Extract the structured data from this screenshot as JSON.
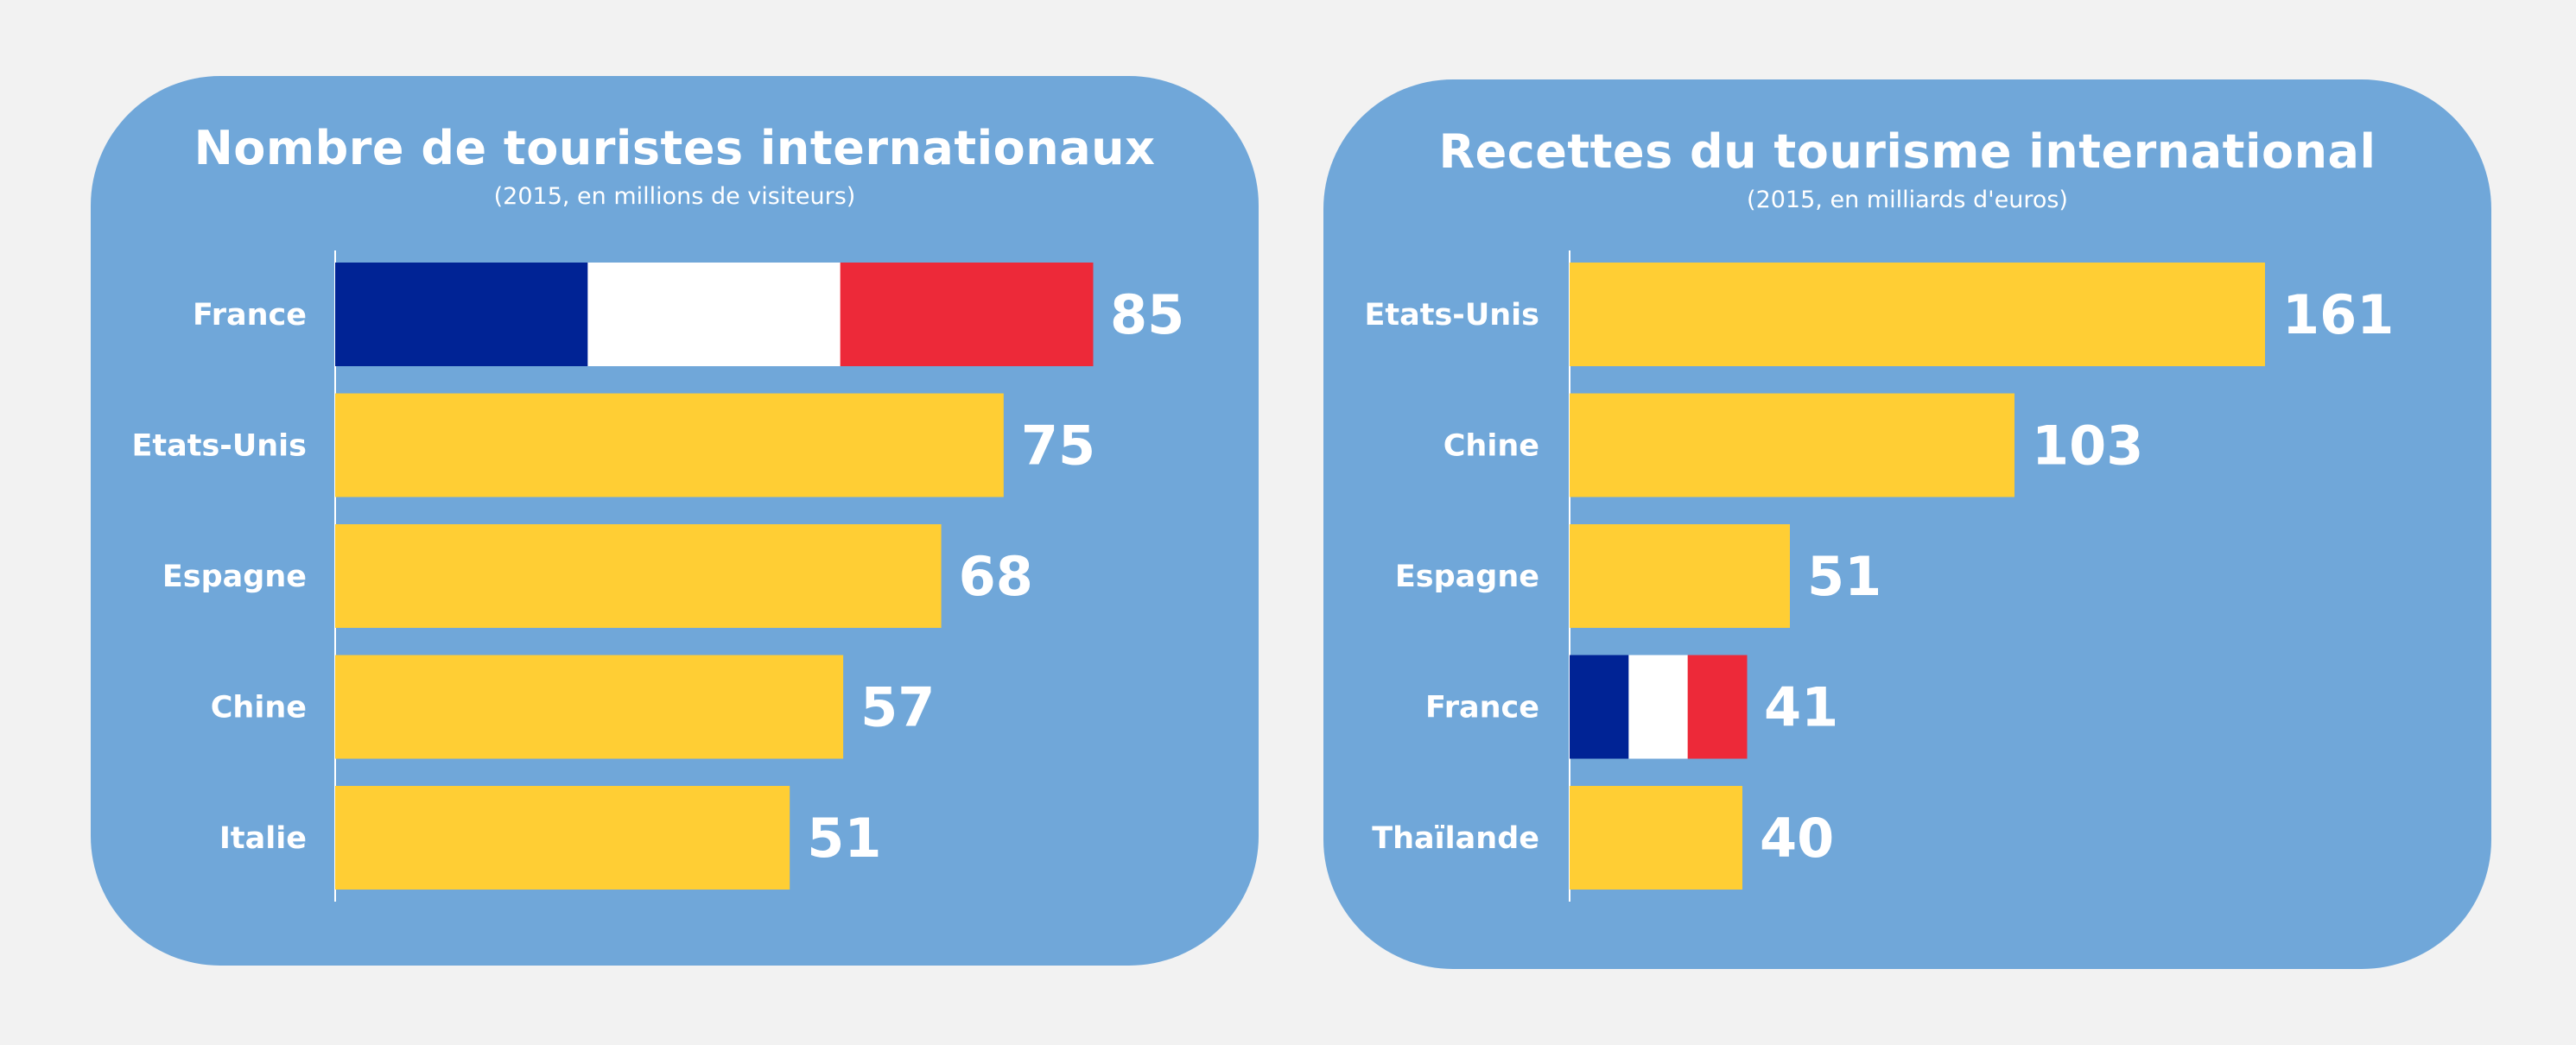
{
  "chart_data": [
    {
      "type": "bar",
      "orientation": "horizontal",
      "title": "Nombre de touristes internationaux",
      "subtitle": "(2015, en millions de visiteurs)",
      "categories": [
        "France",
        "Etats-Unis",
        "Espagne",
        "Chine",
        "Italie"
      ],
      "values": [
        85,
        75,
        68,
        57,
        51
      ],
      "highlight": "France",
      "xlim": [
        0,
        85
      ]
    },
    {
      "type": "bar",
      "orientation": "horizontal",
      "title": "Recettes du tourisme international",
      "subtitle": "(2015, en milliards d'euros)",
      "categories": [
        "Etats-Unis",
        "Chine",
        "Espagne",
        "France",
        "Thaïlande"
      ],
      "values": [
        161,
        103,
        51,
        41,
        40
      ],
      "highlight": "France",
      "xlim": [
        0,
        161
      ]
    }
  ],
  "colors": {
    "background": "#f2f2f2",
    "panel": "#70a7d9",
    "bar": "#ffce34",
    "flag_blue": "#002395",
    "flag_white": "#ffffff",
    "flag_red": "#ed2939",
    "text": "#ffffff"
  }
}
